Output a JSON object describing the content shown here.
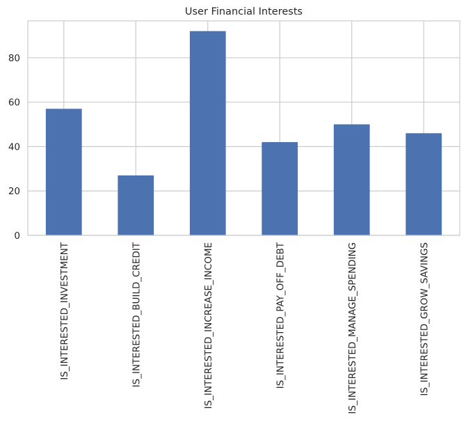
{
  "chart_data": {
    "type": "bar",
    "title": "User Financial Interests",
    "xlabel": "",
    "ylabel": "",
    "categories": [
      "IS_INTERESTED_INVESTMENT",
      "IS_INTERESTED_BUILD_CREDIT",
      "IS_INTERESTED_INCREASE_INCOME",
      "IS_INTERESTED_PAY_OFF_DEBT",
      "IS_INTERESTED_MANAGE_SPENDING",
      "IS_INTERESTED_GROW_SAVINGS"
    ],
    "values": [
      57,
      27,
      92,
      42,
      50,
      46
    ],
    "ylim": [
      0,
      96.6
    ],
    "yticks": [
      0,
      20,
      40,
      60,
      80
    ],
    "grid": true,
    "legend": "none",
    "bar_color": "#4c72b0",
    "grid_color": "#cccccc",
    "text_color": "#262626"
  }
}
